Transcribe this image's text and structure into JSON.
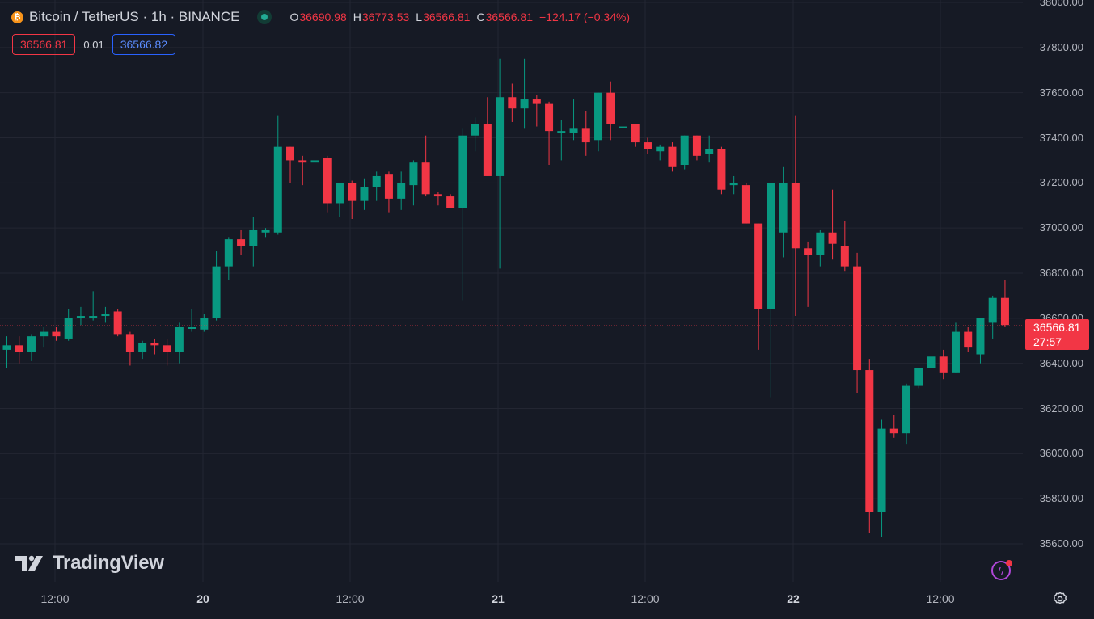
{
  "symbol": {
    "icon": "bitcoin-icon",
    "title": "Bitcoin / TetherUS · 1h · BINANCE"
  },
  "ohlc": {
    "o_label": "O",
    "o": "36690.98",
    "h_label": "H",
    "h": "36773.53",
    "l_label": "L",
    "l": "36566.81",
    "c_label": "C",
    "c": "36566.81",
    "change": "−124.17 (−0.34%)"
  },
  "trade": {
    "sell": "36566.81",
    "spread": "0.01",
    "buy": "36566.82"
  },
  "price_axis": [
    "38000.00",
    "37800.00",
    "37600.00",
    "37400.00",
    "37200.00",
    "37000.00",
    "36800.00",
    "36600.00",
    "36400.00",
    "36200.00",
    "36000.00",
    "35800.00",
    "35600.00"
  ],
  "time_axis": [
    {
      "label": "12:00",
      "bold": false
    },
    {
      "label": "20",
      "bold": true
    },
    {
      "label": "12:00",
      "bold": false
    },
    {
      "label": "21",
      "bold": true
    },
    {
      "label": "12:00",
      "bold": false
    },
    {
      "label": "22",
      "bold": true
    },
    {
      "label": "12:00",
      "bold": false
    }
  ],
  "last_price": {
    "price": "36566.81",
    "countdown": "27:57"
  },
  "brand": {
    "name": "TradingView"
  },
  "colors": {
    "up": "#089981",
    "down": "#f23645",
    "background": "#161a25",
    "grid": "#232632"
  },
  "chart_data": {
    "type": "candlestick",
    "interval": "1h",
    "ylim": [
      35500,
      38000
    ],
    "candles": [
      [
        36460,
        36520,
        36380,
        36480
      ],
      [
        36480,
        36520,
        36400,
        36450
      ],
      [
        36450,
        36530,
        36410,
        36520
      ],
      [
        36520,
        36560,
        36470,
        36540
      ],
      [
        36540,
        36560,
        36500,
        36520
      ],
      [
        36510,
        36640,
        36500,
        36600
      ],
      [
        36600,
        36650,
        36570,
        36610
      ],
      [
        36610,
        36720,
        36590,
        36610
      ],
      [
        36610,
        36650,
        36580,
        36620
      ],
      [
        36630,
        36640,
        36520,
        36530
      ],
      [
        36530,
        36540,
        36390,
        36450
      ],
      [
        36450,
        36500,
        36420,
        36490
      ],
      [
        36490,
        36510,
        36440,
        36480
      ],
      [
        36480,
        36510,
        36390,
        36450
      ],
      [
        36450,
        36580,
        36400,
        36560
      ],
      [
        36560,
        36640,
        36540,
        36560
      ],
      [
        36550,
        36620,
        36540,
        36600
      ],
      [
        36600,
        36900,
        36590,
        36830
      ],
      [
        36830,
        36960,
        36770,
        36950
      ],
      [
        36950,
        36990,
        36880,
        36920
      ],
      [
        36920,
        37050,
        36830,
        36990
      ],
      [
        36980,
        37000,
        36960,
        36990
      ],
      [
        36980,
        37500,
        36970,
        37360
      ],
      [
        37360,
        37360,
        37200,
        37300
      ],
      [
        37300,
        37320,
        37190,
        37290
      ],
      [
        37290,
        37320,
        37200,
        37300
      ],
      [
        37310,
        37320,
        37070,
        37110
      ],
      [
        37110,
        37200,
        37050,
        37200
      ],
      [
        37200,
        37210,
        37040,
        37120
      ],
      [
        37120,
        37220,
        37080,
        37180
      ],
      [
        37180,
        37250,
        37120,
        37230
      ],
      [
        37240,
        37250,
        37070,
        37130
      ],
      [
        37130,
        37250,
        37080,
        37200
      ],
      [
        37190,
        37300,
        37100,
        37290
      ],
      [
        37290,
        37410,
        37140,
        37150
      ],
      [
        37150,
        37160,
        37100,
        37140
      ],
      [
        37140,
        37150,
        37090,
        37090
      ],
      [
        37090,
        37440,
        36680,
        37410
      ],
      [
        37410,
        37490,
        37340,
        37460
      ],
      [
        37460,
        37580,
        37230,
        37230
      ],
      [
        37230,
        37750,
        36820,
        37580
      ],
      [
        37580,
        37640,
        37470,
        37530
      ],
      [
        37530,
        37750,
        37440,
        37570
      ],
      [
        37570,
        37590,
        37450,
        37550
      ],
      [
        37550,
        37560,
        37280,
        37430
      ],
      [
        37420,
        37480,
        37300,
        37430
      ],
      [
        37420,
        37570,
        37390,
        37440
      ],
      [
        37440,
        37520,
        37320,
        37380
      ],
      [
        37390,
        37600,
        37340,
        37600
      ],
      [
        37600,
        37650,
        37390,
        37460
      ],
      [
        37450,
        37460,
        37430,
        37450
      ],
      [
        37460,
        37460,
        37360,
        37380
      ],
      [
        37380,
        37400,
        37330,
        37350
      ],
      [
        37340,
        37370,
        37300,
        37360
      ],
      [
        37360,
        37380,
        37250,
        37270
      ],
      [
        37280,
        37410,
        37260,
        37410
      ],
      [
        37410,
        37410,
        37300,
        37320
      ],
      [
        37330,
        37410,
        37290,
        37350
      ],
      [
        37350,
        37360,
        37150,
        37170
      ],
      [
        37190,
        37230,
        37150,
        37200
      ],
      [
        37190,
        37200,
        37020,
        37020
      ],
      [
        37020,
        37020,
        36460,
        36640
      ],
      [
        36640,
        37200,
        36250,
        37200
      ],
      [
        36980,
        37270,
        36870,
        37200
      ],
      [
        37200,
        37500,
        36610,
        36910
      ],
      [
        36910,
        36940,
        36650,
        36880
      ],
      [
        36880,
        36990,
        36830,
        36980
      ],
      [
        36980,
        37170,
        36860,
        36930
      ],
      [
        36920,
        37030,
        36810,
        36830
      ],
      [
        36830,
        36890,
        36270,
        36370
      ],
      [
        36370,
        36420,
        35650,
        35740
      ],
      [
        35740,
        36150,
        35630,
        36110
      ],
      [
        36110,
        36170,
        36070,
        36090
      ],
      [
        36090,
        36310,
        36040,
        36300
      ],
      [
        36300,
        36380,
        36290,
        36380
      ],
      [
        36380,
        36470,
        36330,
        36430
      ],
      [
        36430,
        36460,
        36330,
        36360
      ],
      [
        36360,
        36580,
        36360,
        36540
      ],
      [
        36540,
        36560,
        36450,
        36470
      ],
      [
        36440,
        36600,
        36400,
        36600
      ],
      [
        36580,
        36700,
        36510,
        36690
      ],
      [
        36690,
        36770,
        36560,
        36570
      ]
    ]
  }
}
